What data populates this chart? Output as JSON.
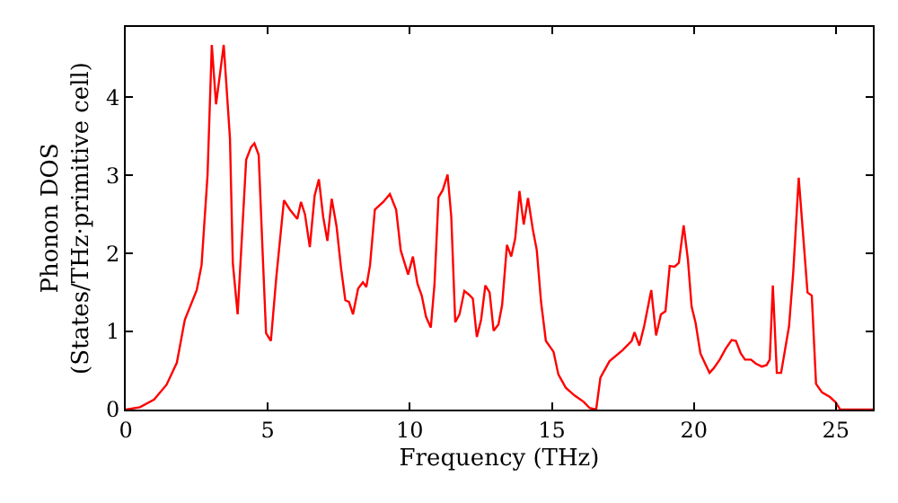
{
  "chart_data": {
    "type": "line",
    "xlabel": "Frequency (THz)",
    "ylabel": "Phonon DOS\n(States/THz·primitive cell)",
    "xlim": [
      0,
      26.3
    ],
    "ylim": [
      0,
      4.9
    ],
    "xticks": [
      0,
      5,
      10,
      15,
      20,
      25
    ],
    "yticks": [
      0,
      1,
      2,
      3,
      4
    ],
    "legend": false,
    "marker": "none",
    "line_style": "solid",
    "x": [
      0,
      0.5,
      1.0,
      1.44,
      1.8,
      2.08,
      2.5,
      2.67,
      2.88,
      3.03,
      3.18,
      3.45,
      3.67,
      3.77,
      3.94,
      4.24,
      4.41,
      4.53,
      4.68,
      4.83,
      4.94,
      5.11,
      5.3,
      5.57,
      5.78,
      6.04,
      6.17,
      6.31,
      6.48,
      6.65,
      6.8,
      6.95,
      7.1,
      7.25,
      7.42,
      7.58,
      7.73,
      7.86,
      8.0,
      8.18,
      8.35,
      8.47,
      8.6,
      8.77,
      9.07,
      9.3,
      9.52,
      9.68,
      9.94,
      10.11,
      10.27,
      10.42,
      10.57,
      10.74,
      10.87,
      11.01,
      11.16,
      11.33,
      11.46,
      11.6,
      11.75,
      11.92,
      12.09,
      12.22,
      12.36,
      12.51,
      12.66,
      12.81,
      12.95,
      13.12,
      13.25,
      13.42,
      13.57,
      13.71,
      13.86,
      14.01,
      14.16,
      14.33,
      14.47,
      14.62,
      14.79,
      15.06,
      15.23,
      15.49,
      15.8,
      16.12,
      16.33,
      16.56,
      16.71,
      17.03,
      17.49,
      17.81,
      17.91,
      18.08,
      18.25,
      18.5,
      18.67,
      18.84,
      19.0,
      19.15,
      19.32,
      19.47,
      19.64,
      19.79,
      19.92,
      20.06,
      20.23,
      20.38,
      20.55,
      20.7,
      20.91,
      21.12,
      21.33,
      21.48,
      21.65,
      21.8,
      22.01,
      22.18,
      22.39,
      22.56,
      22.67,
      22.78,
      22.92,
      23.07,
      23.35,
      23.5,
      23.69,
      23.83,
      24.0,
      24.15,
      24.3,
      24.51,
      24.79,
      25.0,
      25.15,
      26.3
    ],
    "series": [
      {
        "color": "#ff0000",
        "values": [
          0,
          0.03,
          0.13,
          0.32,
          0.6,
          1.15,
          1.53,
          1.85,
          3.0,
          4.67,
          3.91,
          4.67,
          3.47,
          1.88,
          1.22,
          3.2,
          3.36,
          3.41,
          3.26,
          1.92,
          0.98,
          0.88,
          1.69,
          2.68,
          2.56,
          2.44,
          2.66,
          2.5,
          2.08,
          2.74,
          2.95,
          2.47,
          2.16,
          2.7,
          2.35,
          1.81,
          1.4,
          1.38,
          1.22,
          1.55,
          1.63,
          1.57,
          1.85,
          2.56,
          2.66,
          2.76,
          2.56,
          2.04,
          1.73,
          1.96,
          1.61,
          1.46,
          1.19,
          1.05,
          1.61,
          2.72,
          2.81,
          3.01,
          2.47,
          1.12,
          1.22,
          1.52,
          1.47,
          1.42,
          0.93,
          1.15,
          1.59,
          1.5,
          1.01,
          1.09,
          1.34,
          2.11,
          1.96,
          2.19,
          2.8,
          2.37,
          2.71,
          2.31,
          2.04,
          1.38,
          0.88,
          0.74,
          0.45,
          0.28,
          0.18,
          0.1,
          0.02,
          0,
          0.41,
          0.62,
          0.76,
          0.88,
          0.99,
          0.82,
          1.07,
          1.53,
          0.95,
          1.22,
          1.26,
          1.84,
          1.83,
          1.88,
          2.36,
          1.92,
          1.32,
          1.11,
          0.72,
          0.6,
          0.47,
          0.53,
          0.64,
          0.78,
          0.89,
          0.88,
          0.72,
          0.64,
          0.64,
          0.59,
          0.55,
          0.57,
          0.64,
          1.59,
          0.47,
          0.47,
          1.07,
          1.77,
          2.97,
          2.31,
          1.5,
          1.46,
          0.33,
          0.22,
          0.16,
          0.09,
          0,
          0
        ]
      }
    ]
  }
}
